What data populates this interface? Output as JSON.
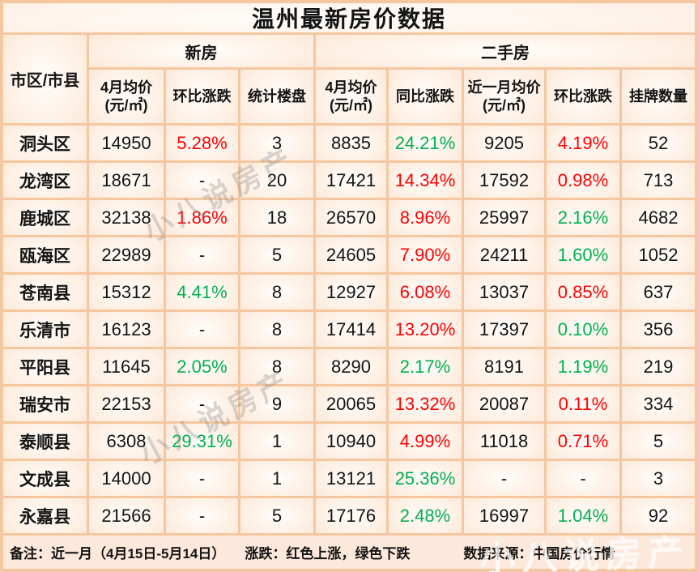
{
  "poster_title": "温州最新房价数据",
  "watermark_text": "小八说房产",
  "colors": {
    "up_red": "#ff0000",
    "down_green": "#00b050",
    "grid_border": "#f4c7a0",
    "cell_bg": "#fae2d0"
  },
  "footer": {
    "note": "备注：近一月（4月15日-5月14日）",
    "legend": "涨跌：红色上涨，绿色下跌",
    "source": "数据来源：中国房价行情"
  },
  "chart_data": {
    "type": "table",
    "title": "温州最新房价数据",
    "corner_header": "市区/市县",
    "groups": [
      {
        "label": "新房",
        "colspan": 3
      },
      {
        "label": "二手房",
        "colspan": 5
      }
    ],
    "columns": [
      "4月均价(元/㎡)",
      "环比涨跌",
      "统计楼盘",
      "4月均价(元/㎡)",
      "同比涨跌",
      "近一月均价(元/㎡)",
      "环比涨跌",
      "挂牌数量"
    ],
    "trend_legend": {
      "up": "红色上涨",
      "down": "绿色下跌"
    },
    "rows": [
      {
        "district": "洞头区",
        "values": [
          "14950",
          "5.28%",
          "3",
          "8835",
          "24.21%",
          "9205",
          "4.19%",
          "52"
        ],
        "trends": [
          null,
          "up",
          null,
          null,
          "down",
          null,
          "up",
          null
        ]
      },
      {
        "district": "龙湾区",
        "values": [
          "18671",
          "-",
          "20",
          "17421",
          "14.34%",
          "17592",
          "0.98%",
          "713"
        ],
        "trends": [
          null,
          null,
          null,
          null,
          "up",
          null,
          "up",
          null
        ]
      },
      {
        "district": "鹿城区",
        "values": [
          "32138",
          "1.86%",
          "18",
          "26570",
          "8.96%",
          "25997",
          "2.16%",
          "4682"
        ],
        "trends": [
          null,
          "up",
          null,
          null,
          "up",
          null,
          "down",
          null
        ]
      },
      {
        "district": "瓯海区",
        "values": [
          "22989",
          "-",
          "5",
          "24605",
          "7.90%",
          "24211",
          "1.60%",
          "1052"
        ],
        "trends": [
          null,
          null,
          null,
          null,
          "up",
          null,
          "down",
          null
        ]
      },
      {
        "district": "苍南县",
        "values": [
          "15312",
          "4.41%",
          "8",
          "12927",
          "6.08%",
          "13037",
          "0.85%",
          "637"
        ],
        "trends": [
          null,
          "down",
          null,
          null,
          "up",
          null,
          "up",
          null
        ]
      },
      {
        "district": "乐清市",
        "values": [
          "16123",
          "-",
          "8",
          "17414",
          "13.20%",
          "17397",
          "0.10%",
          "356"
        ],
        "trends": [
          null,
          null,
          null,
          null,
          "up",
          null,
          "down",
          null
        ]
      },
      {
        "district": "平阳县",
        "values": [
          "11645",
          "2.05%",
          "8",
          "8290",
          "2.17%",
          "8191",
          "1.19%",
          "219"
        ],
        "trends": [
          null,
          "down",
          null,
          null,
          "down",
          null,
          "down",
          null
        ]
      },
      {
        "district": "瑞安市",
        "values": [
          "22153",
          "-",
          "9",
          "20065",
          "13.32%",
          "20087",
          "0.11%",
          "334"
        ],
        "trends": [
          null,
          null,
          null,
          null,
          "up",
          null,
          "up",
          null
        ]
      },
      {
        "district": "泰顺县",
        "values": [
          "6308",
          "29.31%",
          "1",
          "10940",
          "4.99%",
          "11018",
          "0.71%",
          "5"
        ],
        "trends": [
          null,
          "down",
          null,
          null,
          "up",
          null,
          "up",
          null
        ]
      },
      {
        "district": "文成县",
        "values": [
          "14000",
          "-",
          "1",
          "13121",
          "25.36%",
          "-",
          "-",
          "3"
        ],
        "trends": [
          null,
          null,
          null,
          null,
          "down",
          null,
          null,
          null
        ]
      },
      {
        "district": "永嘉县",
        "values": [
          "21566",
          "-",
          "5",
          "17176",
          "2.48%",
          "16997",
          "1.04%",
          "92"
        ],
        "trends": [
          null,
          null,
          null,
          null,
          "down",
          null,
          "down",
          null
        ]
      }
    ]
  }
}
